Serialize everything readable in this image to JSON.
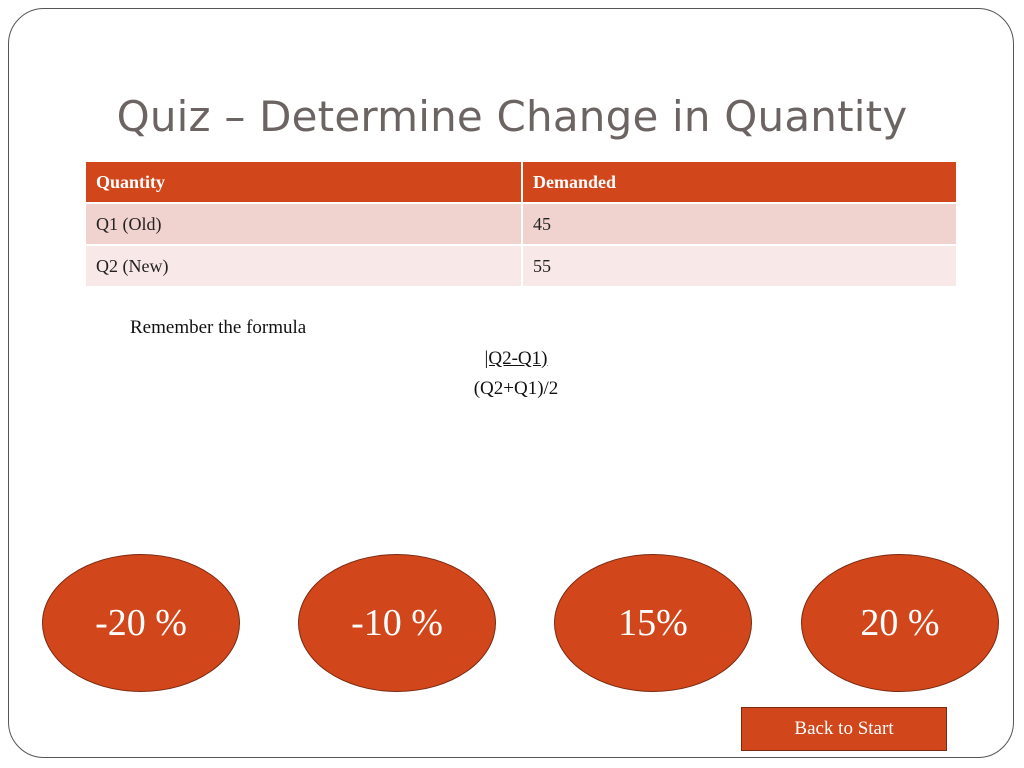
{
  "slide": {
    "title": "Quiz – Determine Change in Quantity"
  },
  "table": {
    "headers": [
      "Quantity",
      "Demanded"
    ],
    "rows": [
      [
        "Q1 (Old)",
        "45"
      ],
      [
        "Q2 (New)",
        "55"
      ]
    ]
  },
  "hint": {
    "text": "Remember the formula",
    "numerator": "|Q2-Q1)",
    "denominator": "(Q2+Q1)/2"
  },
  "answers": [
    {
      "label": "-20 %"
    },
    {
      "label": "-10 %"
    },
    {
      "label": "15%"
    },
    {
      "label": "20 %"
    }
  ],
  "navigation": {
    "back_label": "Back to Start"
  },
  "colors": {
    "accent": "#d1461a",
    "row_odd": "#f0d2cf",
    "row_even": "#f8e8e7",
    "title_text": "#6b6462"
  }
}
